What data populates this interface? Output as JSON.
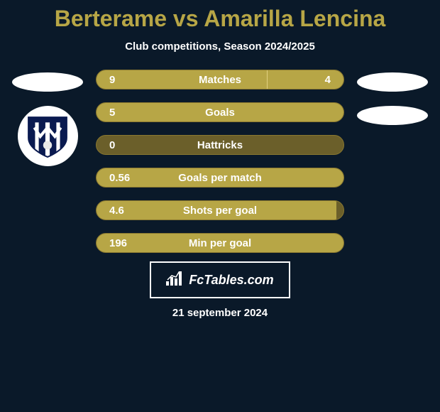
{
  "title": "Berterame vs Amarilla Lencina",
  "subtitle": "Club competitions, Season 2024/2025",
  "watermark_text": "FcTables.com",
  "date": "21 september 2024",
  "colors": {
    "background": "#0a1929",
    "accent": "#b7a646",
    "bar_bg": "#6b5f2a",
    "bar_fill": "#b7a646",
    "text": "#ffffff"
  },
  "bars": [
    {
      "label": "Matches",
      "left_val": "9",
      "right_val": "4",
      "left_pct": 69,
      "right_pct": 31,
      "show_right_fill": true
    },
    {
      "label": "Goals",
      "left_val": "5",
      "right_val": "",
      "left_pct": 100,
      "right_pct": 0,
      "show_right_fill": false
    },
    {
      "label": "Hattricks",
      "left_val": "0",
      "right_val": "",
      "left_pct": 0,
      "right_pct": 0,
      "show_right_fill": false
    },
    {
      "label": "Goals per match",
      "left_val": "0.56",
      "right_val": "",
      "left_pct": 100,
      "right_pct": 0,
      "show_right_fill": false
    },
    {
      "label": "Shots per goal",
      "left_val": "4.6",
      "right_val": "",
      "left_pct": 97,
      "right_pct": 0,
      "show_right_fill": false
    },
    {
      "label": "Min per goal",
      "left_val": "196",
      "right_val": "",
      "left_pct": 100,
      "right_pct": 0,
      "show_right_fill": false
    }
  ],
  "badge": {
    "stripe_color": "#0a1a50",
    "ball_color": "#f2f2f2"
  }
}
